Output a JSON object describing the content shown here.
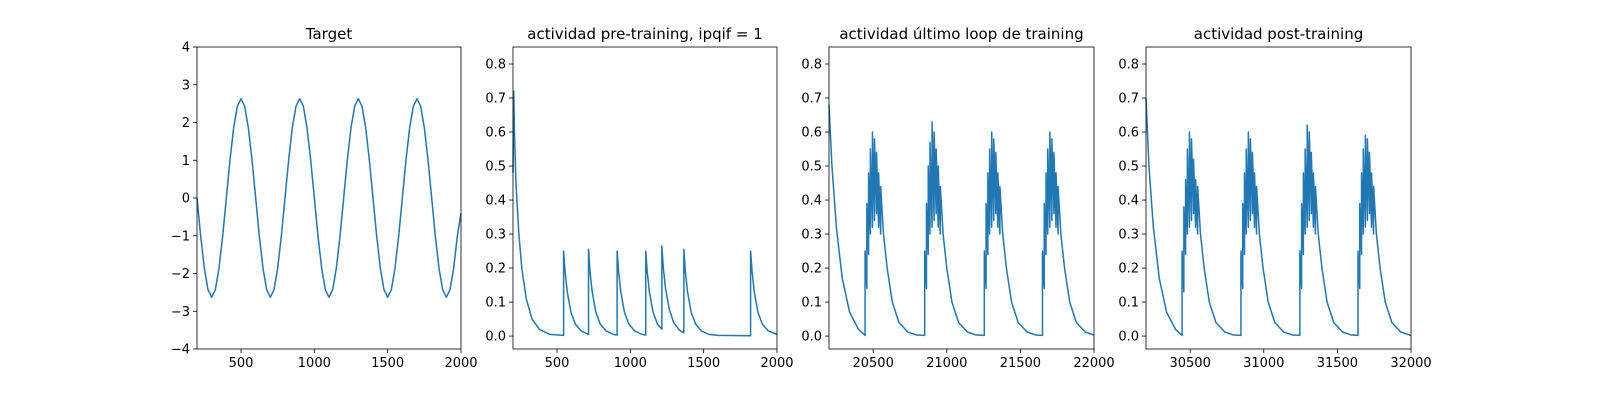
{
  "chart_data": [
    {
      "type": "line",
      "title": "Target",
      "color": "#1f77b4",
      "x": [
        200,
        225,
        250,
        275,
        300,
        325,
        350,
        375,
        400,
        425,
        450,
        475,
        500,
        525,
        550,
        575,
        600,
        625,
        650,
        675,
        700,
        725,
        750,
        775,
        800,
        825,
        850,
        875,
        900,
        925,
        950,
        975,
        1000,
        1025,
        1050,
        1075,
        1100,
        1125,
        1150,
        1175,
        1200,
        1225,
        1250,
        1275,
        1300,
        1325,
        1350,
        1375,
        1400,
        1425,
        1450,
        1475,
        1500,
        1525,
        1550,
        1575,
        1600,
        1625,
        1650,
        1675,
        1700,
        1725,
        1750,
        1775,
        1800,
        1825,
        1850,
        1875,
        1900,
        1925,
        1950,
        1975,
        2000
      ],
      "values": [
        0,
        -1.01,
        -1.86,
        -2.43,
        -2.63,
        -2.43,
        -1.86,
        -1.01,
        0,
        1.01,
        1.86,
        2.43,
        2.63,
        2.43,
        1.86,
        1.01,
        0,
        -1.01,
        -1.86,
        -2.43,
        -2.63,
        -2.43,
        -1.86,
        -1.01,
        0,
        1.01,
        1.86,
        2.43,
        2.63,
        2.43,
        1.86,
        1.01,
        0,
        -1.01,
        -1.86,
        -2.43,
        -2.63,
        -2.43,
        -1.86,
        -1.01,
        0,
        1.01,
        1.86,
        2.43,
        2.63,
        2.43,
        1.86,
        1.01,
        0,
        -1.01,
        -1.86,
        -2.43,
        -2.63,
        -2.43,
        -1.86,
        -1.01,
        0,
        1.01,
        1.86,
        2.43,
        2.63,
        2.43,
        1.86,
        1.01,
        0,
        -1.01,
        -1.86,
        -2.43,
        -2.63,
        -2.43,
        -1.86,
        -1.01,
        -0.4
      ],
      "xlim": [
        200,
        2000
      ],
      "xticks": [
        500,
        1000,
        1500,
        2000
      ],
      "ylim": [
        -4,
        4
      ],
      "yticks": [
        {
          "value": -4,
          "label": "−4"
        },
        {
          "value": -3,
          "label": "−3"
        },
        {
          "value": -2,
          "label": "−2"
        },
        {
          "value": -1,
          "label": "−1"
        },
        0,
        1,
        2,
        3,
        4
      ]
    },
    {
      "type": "line",
      "title": "actividad pre-training, ipqif = 1",
      "color": "#1f77b4",
      "x": [
        200,
        205,
        210,
        220,
        240,
        260,
        290,
        330,
        380,
        450,
        545,
        545,
        555,
        570,
        595,
        625,
        665,
        715,
        715,
        725,
        740,
        765,
        795,
        835,
        885,
        910,
        910,
        920,
        935,
        960,
        990,
        1030,
        1080,
        1105,
        1105,
        1115,
        1130,
        1155,
        1185,
        1215,
        1215,
        1225,
        1240,
        1265,
        1295,
        1335,
        1365,
        1365,
        1375,
        1390,
        1415,
        1445,
        1485,
        1535,
        1600,
        1820,
        1820,
        1830,
        1845,
        1870,
        1900,
        1940,
        2000
      ],
      "values": [
        0.48,
        0.72,
        0.6,
        0.45,
        0.3,
        0.2,
        0.11,
        0.05,
        0.02,
        0.005,
        0.002,
        0.25,
        0.19,
        0.13,
        0.07,
        0.035,
        0.015,
        0.005,
        0.255,
        0.19,
        0.13,
        0.07,
        0.035,
        0.015,
        0.005,
        0.003,
        0.25,
        0.19,
        0.13,
        0.07,
        0.035,
        0.015,
        0.005,
        0.003,
        0.25,
        0.19,
        0.13,
        0.07,
        0.035,
        0.02,
        0.265,
        0.2,
        0.14,
        0.08,
        0.04,
        0.017,
        0.01,
        0.255,
        0.19,
        0.13,
        0.07,
        0.035,
        0.015,
        0.005,
        0.002,
        0.001,
        0.25,
        0.19,
        0.13,
        0.07,
        0.035,
        0.015,
        0.005
      ],
      "xlim": [
        200,
        2000
      ],
      "xticks": [
        500,
        1000,
        1500,
        2000
      ],
      "ylim": [
        -0.038,
        0.85
      ],
      "yticks": [
        {
          "value": 0,
          "label": "0.0"
        },
        0.1,
        0.2,
        0.3,
        0.4,
        0.5,
        0.6,
        0.7,
        0.8
      ]
    },
    {
      "type": "line",
      "title": "actividad último loop de training",
      "color": "#1f77b4",
      "x": [
        20200,
        20220,
        20250,
        20290,
        20340,
        20400,
        20445,
        20445,
        20457,
        20457,
        20469,
        20469,
        20481,
        20481,
        20495,
        20495,
        20509,
        20509,
        20523,
        20523,
        20537,
        20537,
        20551,
        20551,
        20570,
        20595,
        20630,
        20675,
        20735,
        20795,
        20850,
        20850,
        20862,
        20862,
        20874,
        20874,
        20886,
        20886,
        20900,
        20900,
        20914,
        20914,
        20928,
        20928,
        20942,
        20942,
        20956,
        20956,
        20975,
        21000,
        21035,
        21080,
        21140,
        21200,
        21255,
        21255,
        21267,
        21267,
        21279,
        21279,
        21291,
        21291,
        21305,
        21305,
        21319,
        21319,
        21333,
        21333,
        21347,
        21347,
        21361,
        21361,
        21380,
        21405,
        21440,
        21485,
        21545,
        21605,
        21650,
        21650,
        21662,
        21662,
        21674,
        21674,
        21686,
        21686,
        21700,
        21700,
        21714,
        21714,
        21728,
        21728,
        21742,
        21742,
        21756,
        21756,
        21775,
        21800,
        21835,
        21880,
        21940,
        22000
      ],
      "values": [
        0.68,
        0.5,
        0.32,
        0.17,
        0.07,
        0.02,
        0.002,
        0.25,
        0.14,
        0.39,
        0.24,
        0.48,
        0.3,
        0.55,
        0.32,
        0.6,
        0.34,
        0.58,
        0.36,
        0.54,
        0.32,
        0.48,
        0.3,
        0.44,
        0.3,
        0.2,
        0.1,
        0.04,
        0.012,
        0.003,
        0.002,
        0.25,
        0.14,
        0.39,
        0.24,
        0.5,
        0.3,
        0.57,
        0.32,
        0.63,
        0.34,
        0.6,
        0.36,
        0.55,
        0.32,
        0.5,
        0.3,
        0.44,
        0.3,
        0.2,
        0.1,
        0.04,
        0.012,
        0.003,
        0.002,
        0.25,
        0.14,
        0.39,
        0.24,
        0.48,
        0.3,
        0.55,
        0.32,
        0.6,
        0.34,
        0.58,
        0.36,
        0.54,
        0.32,
        0.48,
        0.3,
        0.44,
        0.3,
        0.2,
        0.1,
        0.04,
        0.012,
        0.003,
        0.002,
        0.25,
        0.14,
        0.39,
        0.24,
        0.48,
        0.3,
        0.55,
        0.32,
        0.6,
        0.34,
        0.58,
        0.36,
        0.54,
        0.32,
        0.48,
        0.3,
        0.44,
        0.3,
        0.2,
        0.1,
        0.04,
        0.012,
        0.003
      ],
      "xlim": [
        20200,
        22000
      ],
      "xticks": [
        20500,
        21000,
        21500,
        22000
      ],
      "ylim": [
        -0.038,
        0.85
      ],
      "yticks": [
        {
          "value": 0,
          "label": "0.0"
        },
        0.1,
        0.2,
        0.3,
        0.4,
        0.5,
        0.6,
        0.7,
        0.8
      ]
    },
    {
      "type": "line",
      "title": "actividad post-training",
      "color": "#1f77b4",
      "x": [
        30200,
        30220,
        30250,
        30290,
        30340,
        30400,
        30445,
        30445,
        30457,
        30457,
        30469,
        30469,
        30481,
        30481,
        30495,
        30495,
        30509,
        30509,
        30523,
        30523,
        30537,
        30537,
        30551,
        30551,
        30570,
        30595,
        30630,
        30675,
        30735,
        30795,
        30845,
        30845,
        30857,
        30857,
        30869,
        30869,
        30881,
        30881,
        30895,
        30895,
        30909,
        30909,
        30923,
        30923,
        30937,
        30937,
        30951,
        30951,
        30970,
        30995,
        31030,
        31075,
        31135,
        31195,
        31245,
        31245,
        31257,
        31257,
        31269,
        31269,
        31281,
        31281,
        31295,
        31295,
        31309,
        31309,
        31323,
        31323,
        31337,
        31337,
        31351,
        31351,
        31370,
        31395,
        31430,
        31475,
        31535,
        31595,
        31640,
        31640,
        31652,
        31652,
        31664,
        31664,
        31676,
        31676,
        31690,
        31690,
        31704,
        31704,
        31718,
        31718,
        31732,
        31732,
        31746,
        31746,
        31765,
        31790,
        31825,
        31870,
        31930,
        31990,
        32000
      ],
      "values": [
        0.7,
        0.5,
        0.32,
        0.17,
        0.07,
        0.02,
        0.002,
        0.25,
        0.13,
        0.38,
        0.24,
        0.46,
        0.3,
        0.55,
        0.32,
        0.6,
        0.34,
        0.58,
        0.36,
        0.52,
        0.32,
        0.46,
        0.3,
        0.44,
        0.3,
        0.2,
        0.1,
        0.04,
        0.012,
        0.003,
        0.002,
        0.25,
        0.14,
        0.39,
        0.24,
        0.48,
        0.3,
        0.55,
        0.32,
        0.6,
        0.34,
        0.58,
        0.36,
        0.54,
        0.32,
        0.48,
        0.3,
        0.44,
        0.3,
        0.2,
        0.1,
        0.04,
        0.012,
        0.003,
        0.002,
        0.25,
        0.14,
        0.39,
        0.24,
        0.48,
        0.3,
        0.55,
        0.32,
        0.62,
        0.34,
        0.6,
        0.36,
        0.54,
        0.32,
        0.48,
        0.3,
        0.44,
        0.3,
        0.2,
        0.1,
        0.04,
        0.012,
        0.003,
        0.002,
        0.25,
        0.14,
        0.39,
        0.24,
        0.48,
        0.3,
        0.55,
        0.32,
        0.59,
        0.34,
        0.58,
        0.36,
        0.54,
        0.32,
        0.48,
        0.3,
        0.44,
        0.3,
        0.2,
        0.1,
        0.04,
        0.012,
        0.003,
        0.002
      ],
      "xlim": [
        30200,
        32000
      ],
      "xticks": [
        30500,
        31000,
        31500,
        32000
      ],
      "ylim": [
        -0.038,
        0.85
      ],
      "yticks": [
        {
          "value": 0,
          "label": "0.0"
        },
        0.1,
        0.2,
        0.3,
        0.4,
        0.5,
        0.6,
        0.7,
        0.8
      ]
    }
  ]
}
